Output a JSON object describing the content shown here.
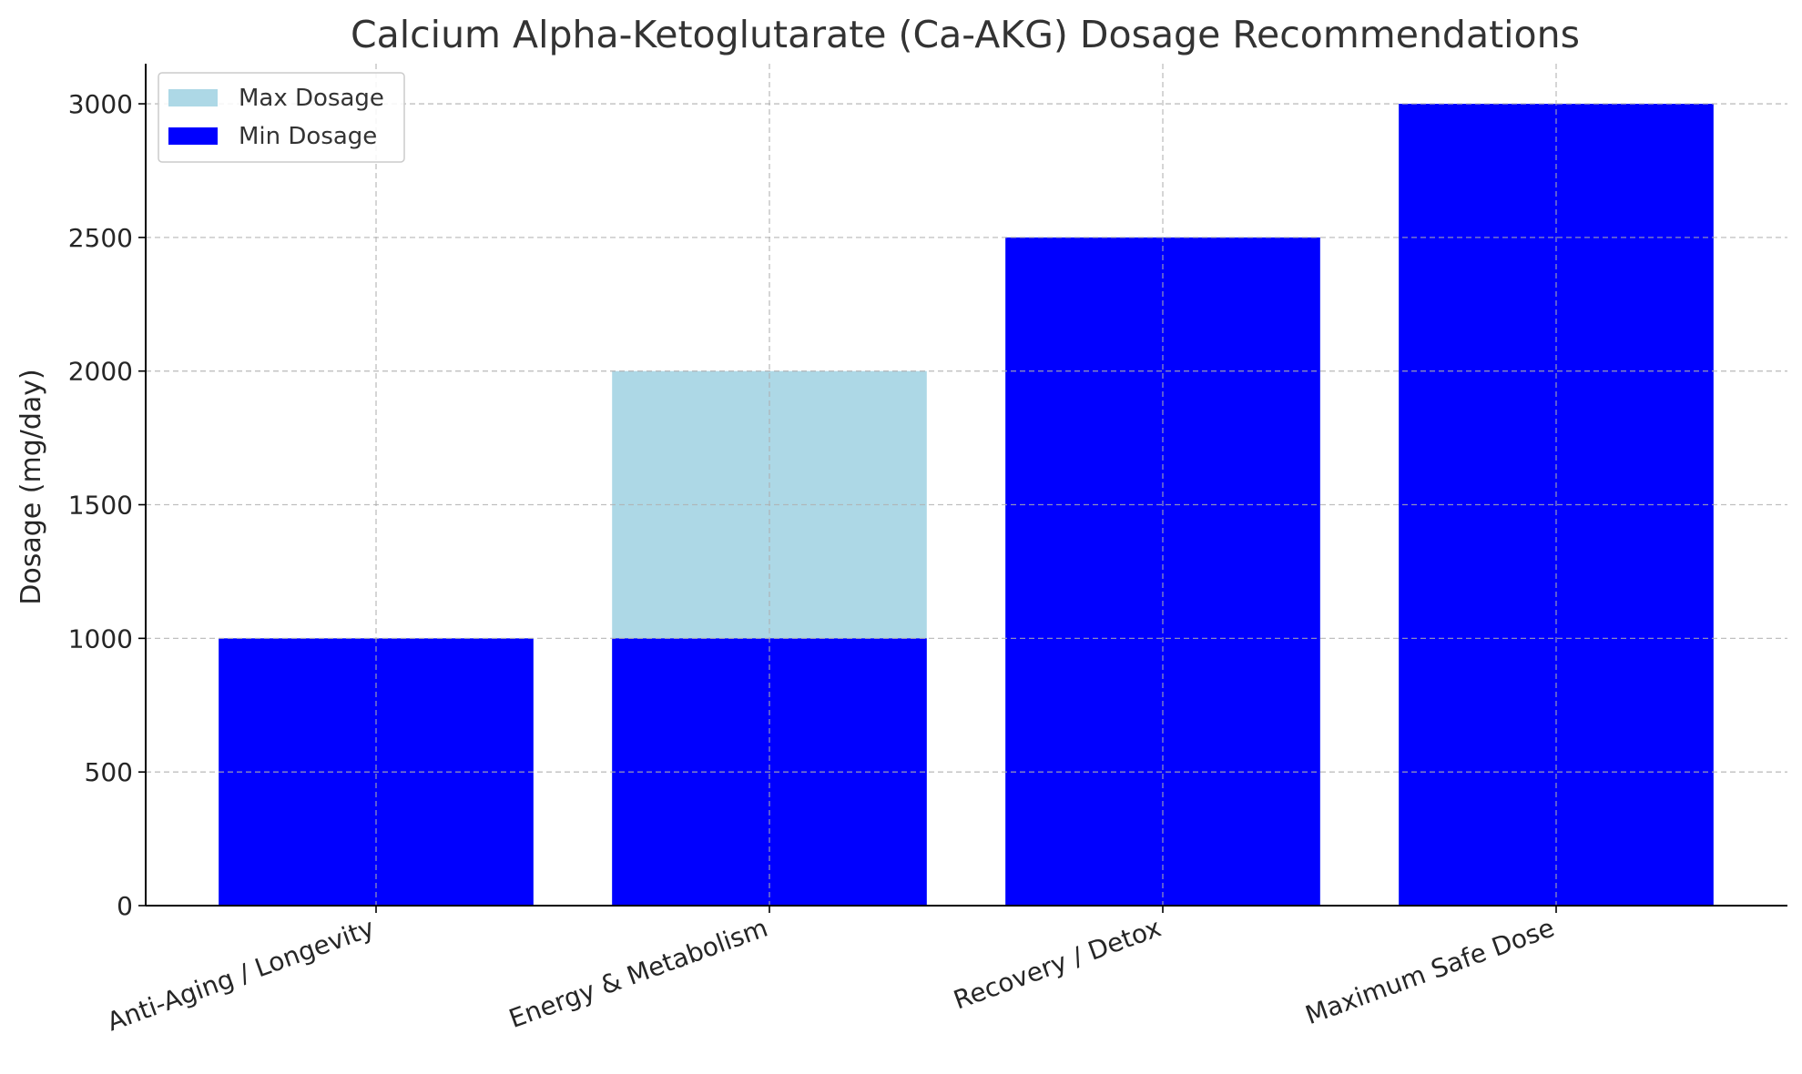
{
  "chart_data": {
    "type": "bar",
    "title": "Calcium Alpha-Ketoglutarate (Ca-AKG) Dosage Recommendations",
    "xlabel": "",
    "ylabel": "Dosage (mg/day)",
    "categories": [
      "Anti-Aging / Longevity",
      "Energy & Metabolism",
      "Recovery / Detox",
      "Maximum Safe Dose"
    ],
    "series": [
      {
        "name": "Max Dosage",
        "values": [
          1000,
          2000,
          2500,
          3000
        ],
        "color": "#add8e6"
      },
      {
        "name": "Min Dosage",
        "values": [
          1000,
          1000,
          2500,
          3000
        ],
        "color": "#0000ff"
      }
    ],
    "ylim": [
      0,
      3150
    ],
    "yticks": [
      "0",
      "500",
      "1000",
      "1500",
      "2000",
      "2500",
      "3000"
    ],
    "grid": true,
    "legend_position": "top-left"
  }
}
